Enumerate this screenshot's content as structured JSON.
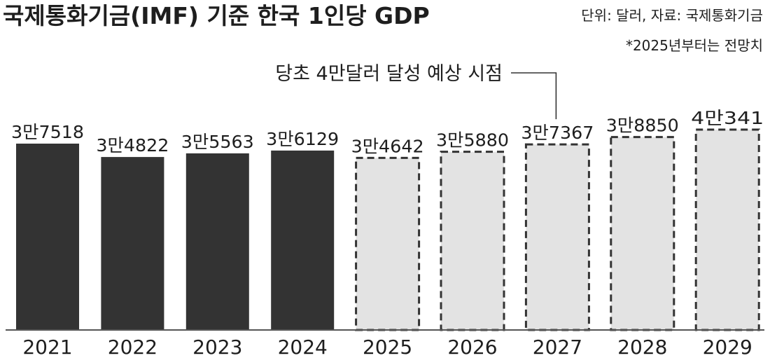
{
  "chart_data": {
    "type": "bar",
    "title": "국제통화기금(IMF) 기준 한국 1인당 GDP",
    "unit_note": "단위: 달러, 자료: 국제통화기금",
    "forecast_note": "*2025년부터는 전망치",
    "annotation": {
      "text": "당초 4만달러 달성 예상 시점",
      "target_category": "2027"
    },
    "categories": [
      "2021",
      "2022",
      "2023",
      "2024",
      "2025",
      "2026",
      "2027",
      "2028",
      "2029"
    ],
    "values": [
      37518,
      34822,
      35563,
      36129,
      34642,
      35880,
      37367,
      38850,
      40341
    ],
    "value_labels": [
      "3만7518",
      "3만4822",
      "3만5563",
      "3만6129",
      "3만4642",
      "3만5880",
      "3만7367",
      "3만8850",
      "4만341"
    ],
    "forecast": [
      false,
      false,
      false,
      false,
      true,
      true,
      true,
      true,
      true
    ],
    "ylim": [
      0,
      40341
    ],
    "grid": false,
    "colors": {
      "actual": "#333333",
      "forecast_fill": "#e3e3e3",
      "forecast_border": "#333333",
      "text": "#1e1e1e",
      "baseline": "#555555"
    }
  }
}
